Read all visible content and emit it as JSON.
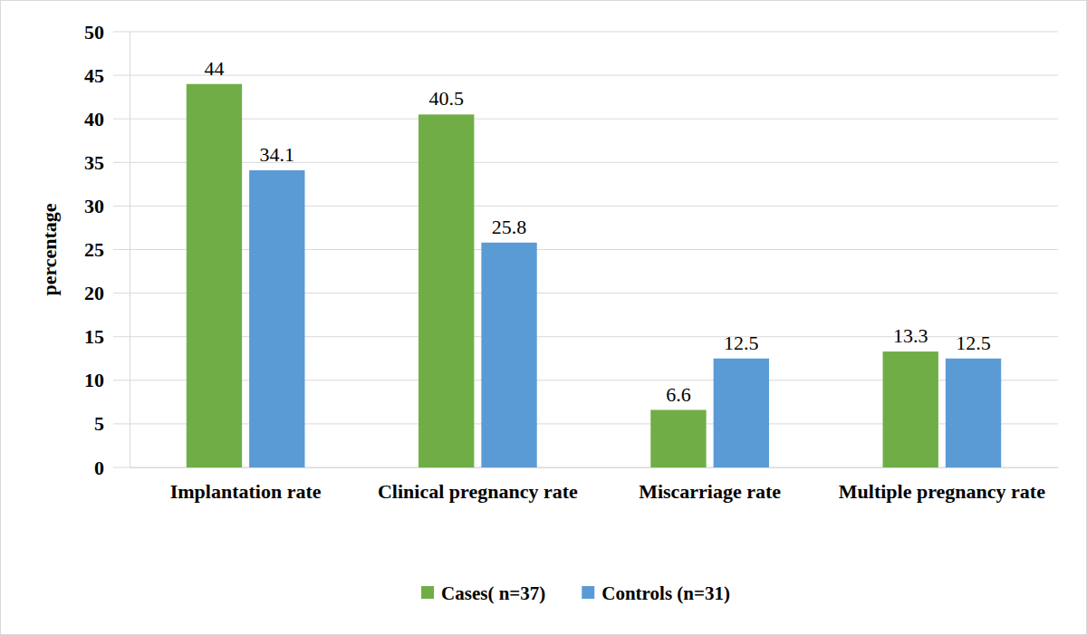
{
  "chart_data": {
    "type": "bar",
    "categories": [
      "Implantation rate",
      "Clinical pregnancy rate",
      "Miscarriage rate",
      "Multiple pregnancy rate"
    ],
    "series": [
      {
        "name": "Cases( n=37)",
        "color": "#70ad47",
        "values": [
          44,
          40.5,
          6.6,
          13.3
        ]
      },
      {
        "name": "Controls (n=31)",
        "color": "#5b9bd5",
        "values": [
          34.1,
          25.8,
          12.5,
          12.5
        ]
      }
    ],
    "y_label": "percentage",
    "ylim": [
      0,
      50
    ],
    "yticks": [
      0,
      5,
      10,
      15,
      20,
      25,
      30,
      35,
      40,
      45,
      50
    ],
    "grid": true,
    "data_labels": true,
    "legend": "bottom"
  }
}
